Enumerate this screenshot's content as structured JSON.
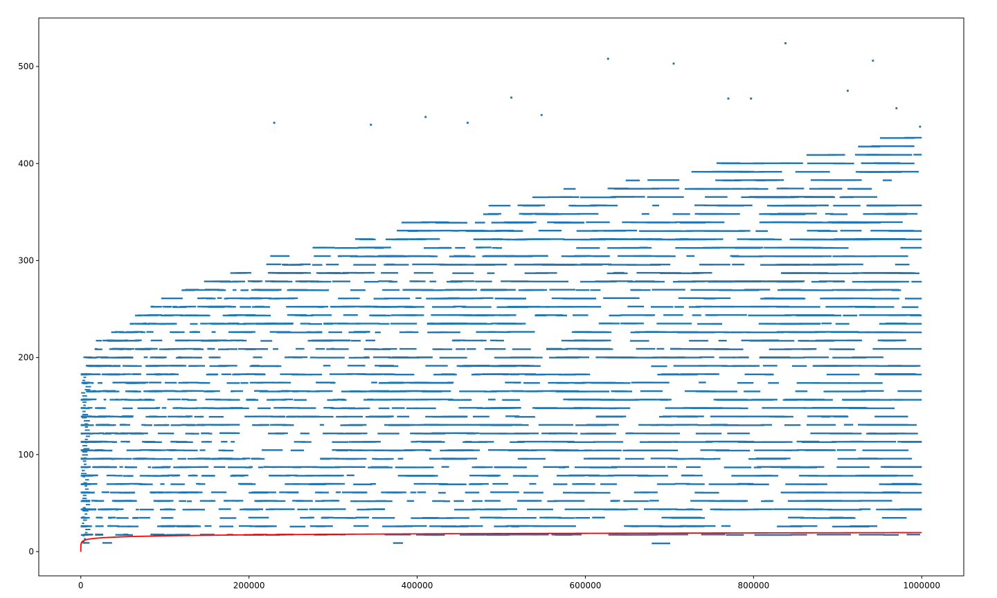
{
  "chart_data": {
    "type": "scatter",
    "title": "",
    "xlabel": "",
    "ylabel": "",
    "xlim": [
      -50000,
      1050000
    ],
    "ylim": [
      -25,
      550
    ],
    "xticks": [
      0,
      200000,
      400000,
      600000,
      800000,
      1000000
    ],
    "xtick_labels": [
      "0",
      "200000",
      "400000",
      "600000",
      "800000",
      "1000000"
    ],
    "yticks": [
      0,
      100,
      200,
      300,
      400,
      500
    ],
    "ytick_labels": [
      "0",
      "100",
      "200",
      "300",
      "400",
      "500"
    ],
    "grid": false,
    "legend": "none",
    "series": [
      {
        "kind": "scatter",
        "color": "#1f77b4",
        "description_points": "dense horizontal bands of small points from x=1 to x=1000000; band upper envelope rising from ~180 near x=0 to ~350-450 by x=1000000",
        "outliers": [
          {
            "x": 230000,
            "y": 442
          },
          {
            "x": 345000,
            "y": 440
          },
          {
            "x": 410000,
            "y": 448
          },
          {
            "x": 460000,
            "y": 442
          },
          {
            "x": 512000,
            "y": 468
          },
          {
            "x": 548000,
            "y": 450
          },
          {
            "x": 627000,
            "y": 508
          },
          {
            "x": 705000,
            "y": 503
          },
          {
            "x": 770000,
            "y": 467
          },
          {
            "x": 797000,
            "y": 467
          },
          {
            "x": 838000,
            "y": 524
          },
          {
            "x": 912000,
            "y": 475
          },
          {
            "x": 942000,
            "y": 506
          },
          {
            "x": 970000,
            "y": 457
          },
          {
            "x": 998000,
            "y": 438
          }
        ]
      },
      {
        "kind": "line",
        "color": "#ff0000",
        "description": "smooth curve rising steeply near x=0 then flattening, from ~0 at x=1 to ~20 at x=1000000",
        "points": [
          {
            "x": 1,
            "y": 0
          },
          {
            "x": 1000,
            "y": 9
          },
          {
            "x": 10000,
            "y": 12.4
          },
          {
            "x": 50000,
            "y": 14.8
          },
          {
            "x": 100000,
            "y": 15.8
          },
          {
            "x": 200000,
            "y": 17
          },
          {
            "x": 400000,
            "y": 18.2
          },
          {
            "x": 600000,
            "y": 18.9
          },
          {
            "x": 800000,
            "y": 19.4
          },
          {
            "x": 1000000,
            "y": 19.8
          }
        ]
      }
    ]
  }
}
